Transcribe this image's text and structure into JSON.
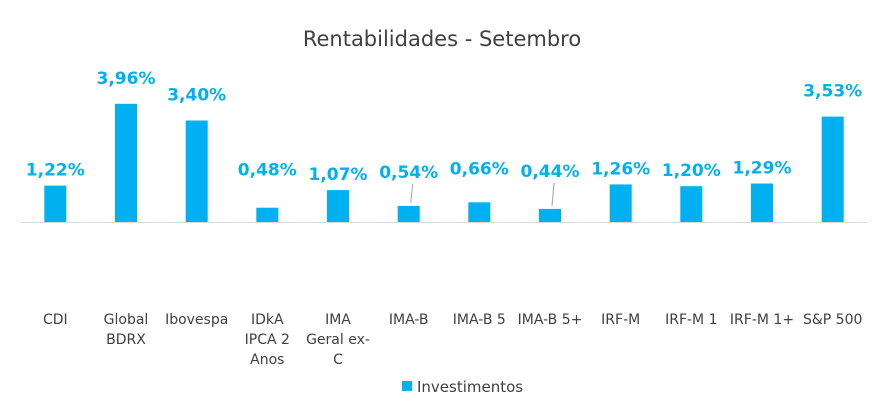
{
  "chart_data": {
    "type": "bar",
    "title": "Rentabilidades - Setembro",
    "categories": [
      "CDI",
      "Global BDRX",
      "Ibovespa",
      "IDkA IPCA 2 Anos",
      "IMA Geral ex-C",
      "IMA-B",
      "IMA-B 5",
      "IMA-B 5+",
      "IRF-M",
      "IRF-M 1",
      "IRF-M 1+",
      "S&P 500"
    ],
    "category_lines": [
      [
        "CDI"
      ],
      [
        "Global",
        "BDRX"
      ],
      [
        "Ibovespa"
      ],
      [
        "IDkA",
        "IPCA 2",
        "Anos"
      ],
      [
        "IMA",
        "Geral ex-",
        "C"
      ],
      [
        "IMA-B"
      ],
      [
        "IMA-B 5"
      ],
      [
        "IMA-B 5+"
      ],
      [
        "IRF-M"
      ],
      [
        "IRF-M 1"
      ],
      [
        "IRF-M 1+"
      ],
      [
        "S&P 500"
      ]
    ],
    "series": [
      {
        "name": "Investimentos",
        "values": [
          1.22,
          3.96,
          3.4,
          0.48,
          1.07,
          0.54,
          0.66,
          0.44,
          1.26,
          1.2,
          1.29,
          3.53
        ],
        "labels": [
          "1,22%",
          "3,96%",
          "3,40%",
          "0,48%",
          "1,07%",
          "0,54%",
          "0,66%",
          "0,44%",
          "1,26%",
          "1,20%",
          "1,29%",
          "3,53%"
        ]
      }
    ],
    "xlabel": "",
    "ylabel": "",
    "ylim": [
      0,
      4.5
    ],
    "grid": false,
    "legend_position": "bottom",
    "colors": {
      "bar": "#00B0F0",
      "label": "#00B0F0",
      "text": "#404040",
      "axis": "#d9d9d9"
    }
  }
}
